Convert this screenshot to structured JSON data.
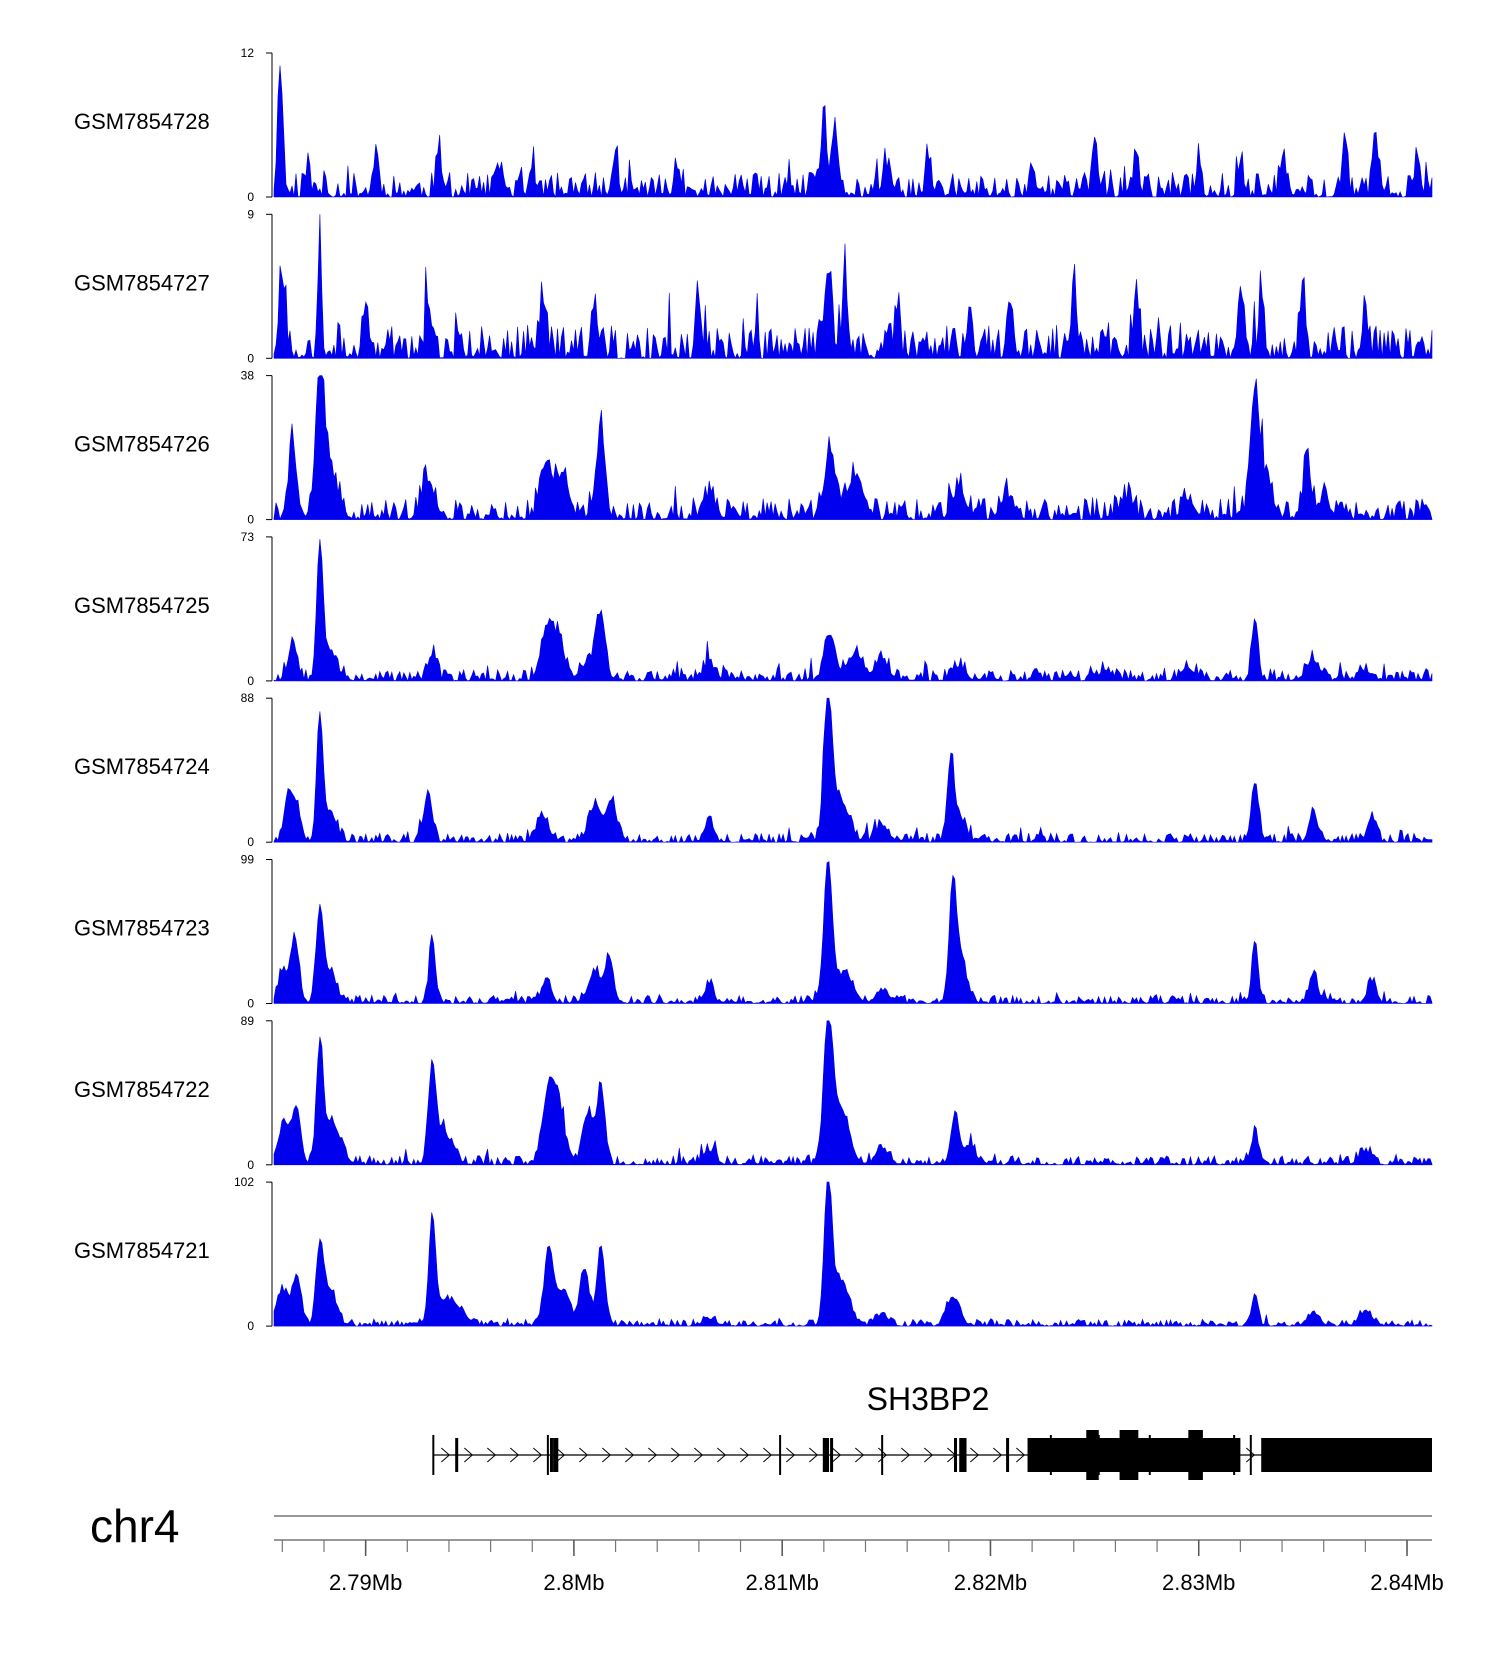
{
  "chart_data": {
    "type": "area",
    "genome": "chr4",
    "x_range_mb": [
      2.7856,
      2.8412
    ],
    "track_color": "#0000ee",
    "tracks": [
      {
        "name": "GSM7854728",
        "ymax": 12,
        "ymin_label": "0",
        "ymax_label": "12",
        "peaks": [
          [
            2.7859,
            11,
            0.00012
          ],
          [
            2.7872,
            2,
            0.00012
          ],
          [
            2.7905,
            3.5,
            0.00012
          ],
          [
            2.7935,
            3.5,
            0.00012
          ],
          [
            2.7965,
            2.5,
            0.00012
          ],
          [
            2.798,
            2.5,
            0.00012
          ],
          [
            2.802,
            3.5,
            0.00012
          ],
          [
            2.805,
            2.5,
            0.00012
          ],
          [
            2.812,
            6,
            0.00015
          ],
          [
            2.8125,
            5.5,
            0.00012
          ],
          [
            2.815,
            2.5,
            0.00012
          ],
          [
            2.817,
            3,
            0.00012
          ],
          [
            2.822,
            2.5,
            0.00012
          ],
          [
            2.825,
            5,
            0.00012
          ],
          [
            2.827,
            3.5,
            0.00012
          ],
          [
            2.83,
            3,
            0.00012
          ],
          [
            2.832,
            3,
            0.00012
          ],
          [
            2.834,
            3,
            0.00012
          ],
          [
            2.837,
            5,
            0.00012
          ],
          [
            2.8385,
            5,
            0.00012
          ],
          [
            2.8405,
            2.5,
            0.00012
          ]
        ],
        "noise": 1.3,
        "seed": 11
      },
      {
        "name": "GSM7854727",
        "ymax": 9,
        "ymin_label": "0",
        "ymax_label": "9",
        "peaks": [
          [
            2.786,
            5,
            0.00015
          ],
          [
            2.7878,
            8.5,
            8e-05
          ],
          [
            2.79,
            3.5,
            0.00012
          ],
          [
            2.793,
            3.5,
            0.00012
          ],
          [
            2.7985,
            3.5,
            0.00015
          ],
          [
            2.801,
            3.5,
            0.00012
          ],
          [
            2.806,
            3.5,
            0.00012
          ],
          [
            2.8122,
            5.5,
            0.00015
          ],
          [
            2.813,
            4.5,
            0.00012
          ],
          [
            2.8155,
            3,
            0.00012
          ],
          [
            2.819,
            3,
            0.00012
          ],
          [
            2.821,
            3.5,
            0.00012
          ],
          [
            2.824,
            4.5,
            0.00012
          ],
          [
            2.827,
            3.5,
            0.00012
          ],
          [
            2.832,
            4.5,
            0.00012
          ],
          [
            2.833,
            4,
            0.00012
          ],
          [
            2.835,
            5,
            0.00012
          ],
          [
            2.838,
            3,
            0.00012
          ]
        ],
        "noise": 1.3,
        "seed": 27
      },
      {
        "name": "GSM7854726",
        "ymax": 38,
        "ymin_label": "0",
        "ymax_label": "38",
        "peaks": [
          [
            2.7865,
            18,
            0.0002
          ],
          [
            2.7878,
            35,
            0.00018
          ],
          [
            2.7882,
            14,
            0.0004
          ],
          [
            2.793,
            10,
            0.0003
          ],
          [
            2.7987,
            15,
            0.0003
          ],
          [
            2.7995,
            12,
            0.00025
          ],
          [
            2.8013,
            24,
            0.0002
          ],
          [
            2.8065,
            6,
            0.0003
          ],
          [
            2.8123,
            18,
            0.00025
          ],
          [
            2.8135,
            11,
            0.0004
          ],
          [
            2.8185,
            7,
            0.0003
          ],
          [
            2.8208,
            6,
            0.0003
          ],
          [
            2.8265,
            5,
            0.0003
          ],
          [
            2.8295,
            5,
            0.0003
          ],
          [
            2.8327,
            26,
            0.00018
          ],
          [
            2.833,
            12,
            0.0004
          ],
          [
            2.8352,
            15,
            0.00018
          ],
          [
            2.836,
            5,
            0.0003
          ]
        ],
        "noise": 3.5,
        "seed": 41
      },
      {
        "name": "GSM7854725",
        "ymax": 73,
        "ymin_label": "0",
        "ymax_label": "73",
        "peaks": [
          [
            2.7865,
            20,
            0.0002
          ],
          [
            2.7878,
            68,
            0.00015
          ],
          [
            2.7883,
            15,
            0.0003
          ],
          [
            2.7932,
            13,
            0.0002
          ],
          [
            2.7987,
            25,
            0.0003
          ],
          [
            2.7993,
            20,
            0.00025
          ],
          [
            2.8013,
            33,
            0.00022
          ],
          [
            2.8007,
            10,
            0.0003
          ],
          [
            2.8065,
            8,
            0.0003
          ],
          [
            2.8123,
            23,
            0.00025
          ],
          [
            2.8135,
            13,
            0.0004
          ],
          [
            2.8148,
            10,
            0.0003
          ],
          [
            2.8185,
            7,
            0.0003
          ],
          [
            2.8255,
            5,
            0.0003
          ],
          [
            2.8295,
            6,
            0.0003
          ],
          [
            2.8327,
            32,
            0.00015
          ],
          [
            2.8355,
            10,
            0.0003
          ],
          [
            2.838,
            5,
            0.0003
          ]
        ],
        "noise": 4,
        "seed": 53
      },
      {
        "name": "GSM7854724",
        "ymax": 88,
        "ymin_label": "0",
        "ymax_label": "88",
        "peaks": [
          [
            2.7863,
            28,
            0.0002
          ],
          [
            2.7867,
            20,
            0.0002
          ],
          [
            2.7878,
            75,
            0.00015
          ],
          [
            2.7883,
            18,
            0.0003
          ],
          [
            2.793,
            30,
            0.0002
          ],
          [
            2.7985,
            14,
            0.0003
          ],
          [
            2.801,
            22,
            0.0003
          ],
          [
            2.8018,
            25,
            0.00025
          ],
          [
            2.8065,
            14,
            0.0002
          ],
          [
            2.8122,
            86,
            0.0002
          ],
          [
            2.8128,
            25,
            0.0004
          ],
          [
            2.8148,
            10,
            0.0003
          ],
          [
            2.8181,
            48,
            0.00015
          ],
          [
            2.8185,
            15,
            0.0003
          ],
          [
            2.8327,
            36,
            0.00018
          ],
          [
            2.8355,
            18,
            0.0002
          ],
          [
            2.8383,
            15,
            0.0002
          ]
        ],
        "noise": 3.5,
        "seed": 67
      },
      {
        "name": "GSM7854723",
        "ymax": 99,
        "ymin_label": "0",
        "ymax_label": "99",
        "peaks": [
          [
            2.786,
            22,
            0.0002
          ],
          [
            2.7866,
            45,
            0.0002
          ],
          [
            2.7878,
            62,
            0.00018
          ],
          [
            2.7883,
            20,
            0.0003
          ],
          [
            2.7932,
            44,
            0.00015
          ],
          [
            2.7987,
            18,
            0.0002
          ],
          [
            2.801,
            22,
            0.0003
          ],
          [
            2.8017,
            30,
            0.0002
          ],
          [
            2.8065,
            13,
            0.0002
          ],
          [
            2.8122,
            97,
            0.0002
          ],
          [
            2.813,
            20,
            0.0004
          ],
          [
            2.8148,
            8,
            0.0003
          ],
          [
            2.8182,
            75,
            0.00018
          ],
          [
            2.8186,
            25,
            0.0003
          ],
          [
            2.8327,
            42,
            0.00015
          ],
          [
            2.8355,
            20,
            0.0002
          ],
          [
            2.8383,
            15,
            0.0002
          ]
        ],
        "noise": 3.5,
        "seed": 79
      },
      {
        "name": "GSM7854722",
        "ymax": 89,
        "ymin_label": "0",
        "ymax_label": "89",
        "peaks": [
          [
            2.7861,
            25,
            0.0003
          ],
          [
            2.7867,
            32,
            0.0002
          ],
          [
            2.7878,
            70,
            0.00016
          ],
          [
            2.7884,
            25,
            0.0004
          ],
          [
            2.7932,
            58,
            0.00018
          ],
          [
            2.7938,
            18,
            0.0004
          ],
          [
            2.7988,
            45,
            0.0003
          ],
          [
            2.7993,
            28,
            0.0003
          ],
          [
            2.8007,
            32,
            0.00025
          ],
          [
            2.8013,
            48,
            0.00018
          ],
          [
            2.8065,
            8,
            0.0003
          ],
          [
            2.8122,
            88,
            0.0002
          ],
          [
            2.8128,
            35,
            0.0004
          ],
          [
            2.8148,
            10,
            0.0003
          ],
          [
            2.8183,
            30,
            0.0002
          ],
          [
            2.819,
            10,
            0.0003
          ],
          [
            2.8327,
            18,
            0.0002
          ],
          [
            2.838,
            8,
            0.0003
          ]
        ],
        "noise": 3.5,
        "seed": 97
      },
      {
        "name": "GSM7854721",
        "ymax": 102,
        "ymin_label": "0",
        "ymax_label": "102",
        "peaks": [
          [
            2.786,
            25,
            0.0003
          ],
          [
            2.7867,
            35,
            0.0002
          ],
          [
            2.7878,
            55,
            0.00018
          ],
          [
            2.7883,
            25,
            0.0003
          ],
          [
            2.7932,
            72,
            0.00016
          ],
          [
            2.794,
            18,
            0.0006
          ],
          [
            2.7988,
            55,
            0.00022
          ],
          [
            2.7995,
            25,
            0.0003
          ],
          [
            2.8005,
            40,
            0.00022
          ],
          [
            2.8013,
            55,
            0.0002
          ],
          [
            2.8065,
            5,
            0.0003
          ],
          [
            2.8122,
            100,
            0.00018
          ],
          [
            2.8128,
            32,
            0.0004
          ],
          [
            2.8148,
            8,
            0.0003
          ],
          [
            2.8182,
            20,
            0.0003
          ],
          [
            2.8327,
            22,
            0.00015
          ],
          [
            2.8355,
            8,
            0.0003
          ],
          [
            2.838,
            10,
            0.0003
          ]
        ],
        "noise": 3,
        "seed": 113
      }
    ],
    "gene": {
      "name": "SH3BP2",
      "start": 2.79325,
      "end": 2.8412,
      "strand": "+",
      "exons": [
        [
          2.7943,
          2.79438
        ],
        [
          2.79885,
          2.79893
        ],
        [
          2.799,
          2.79925
        ],
        [
          2.81195,
          2.81225
        ],
        [
          2.8123,
          2.81238
        ],
        [
          2.81825,
          2.81833
        ],
        [
          2.8185,
          2.81885
        ],
        [
          2.82075,
          2.82083
        ],
        [
          2.8231,
          2.82318
        ],
        [
          2.82345,
          2.82353
        ],
        [
          2.8246,
          2.8252
        ],
        [
          2.8262,
          2.8271
        ],
        [
          2.82725,
          2.82733
        ],
        [
          2.8295,
          2.8302
        ],
        [
          2.8317,
          2.82178
        ],
        [
          2.832,
          2.82225
        ],
        [
          2.82258,
          2.82266
        ],
        [
          2.833,
          2.8412
        ]
      ],
      "ticks": [
        2.79325,
        2.79875,
        2.8099,
        2.8148,
        2.8229,
        2.8252,
        2.82765,
        2.8317,
        2.8325
      ]
    },
    "axis": {
      "chrom_label": "chr4",
      "labels": [
        {
          "value": 2.79,
          "text": "2.79Mb"
        },
        {
          "value": 2.8,
          "text": "2.8Mb"
        },
        {
          "value": 2.81,
          "text": "2.81Mb"
        },
        {
          "value": 2.82,
          "text": "2.82Mb"
        },
        {
          "value": 2.83,
          "text": "2.83Mb"
        },
        {
          "value": 2.84,
          "text": "2.84Mb"
        }
      ],
      "minor_step_mb": 0.002
    }
  }
}
